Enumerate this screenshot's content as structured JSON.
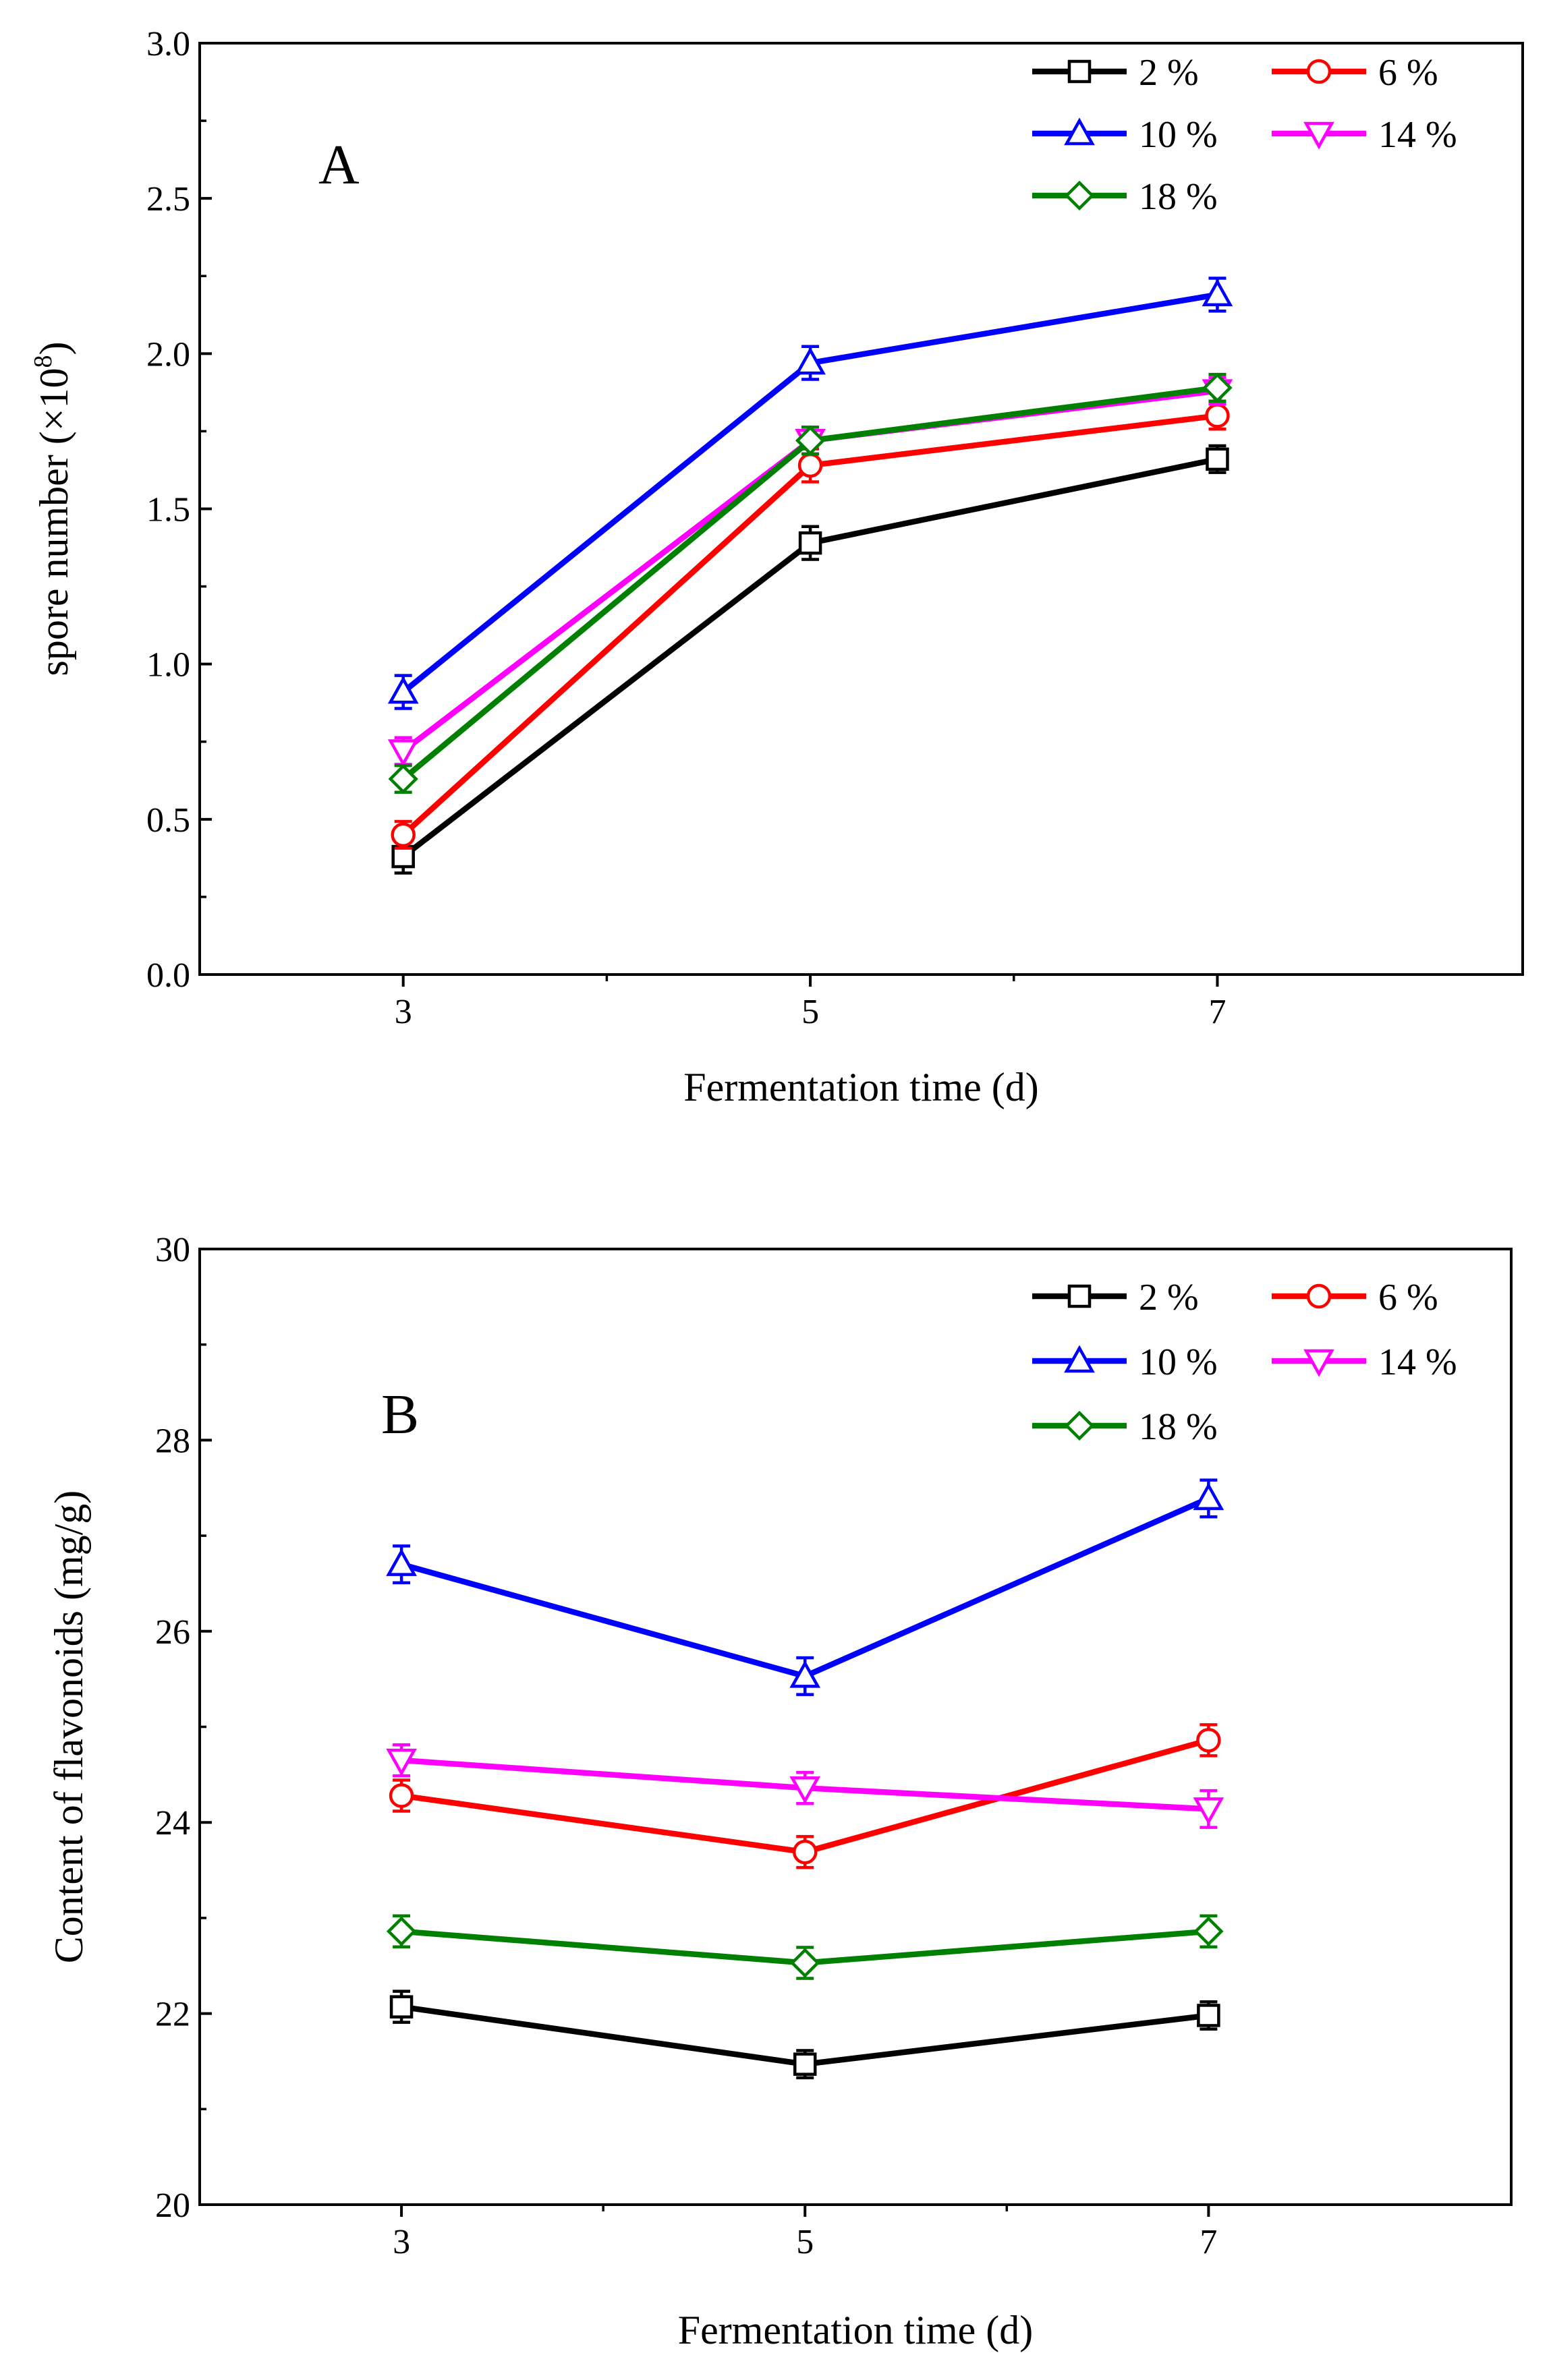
{
  "chart_data": [
    {
      "type": "line",
      "panel_label": "A",
      "title": "",
      "xlabel": "Fermentation time (d)",
      "ylabel_main": "spore number (×10",
      "ylabel_sup": "8",
      "ylabel_close": ")",
      "x": [
        3,
        5,
        7
      ],
      "x_tick_labels": [
        "3",
        "5",
        "7"
      ],
      "xlim": [
        2,
        8.5
      ],
      "ylim": [
        0,
        3.0
      ],
      "y_ticks": [
        0.0,
        0.5,
        1.0,
        1.5,
        2.0,
        2.5,
        3.0
      ],
      "y_tick_labels": [
        "0.0",
        "0.5",
        "1.0",
        "1.5",
        "2.0",
        "2.5",
        "3.0"
      ],
      "grid": false,
      "legend_position": "top-right",
      "series": [
        {
          "name": "2 %",
          "color": "#000000",
          "marker": "square",
          "values": [
            0.38,
            1.39,
            1.66
          ],
          "errors": [
            0.04,
            0.04,
            0.03
          ]
        },
        {
          "name": "6 %",
          "color": "#ff0000",
          "marker": "circle",
          "values": [
            0.45,
            1.64,
            1.8
          ],
          "errors": [
            0.03,
            0.04,
            0.03
          ]
        },
        {
          "name": "10 %",
          "color": "#0000ff",
          "marker": "triangle-up",
          "values": [
            0.91,
            1.97,
            2.19
          ],
          "errors": [
            0.04,
            0.04,
            0.04
          ]
        },
        {
          "name": "14 %",
          "color": "#ff00ff",
          "marker": "triangle-down",
          "values": [
            0.72,
            1.72,
            1.88
          ],
          "errors": [
            0.03,
            0.03,
            0.03
          ]
        },
        {
          "name": "18 %",
          "color": "#008000",
          "marker": "diamond",
          "values": [
            0.63,
            1.72,
            1.89
          ],
          "errors": [
            0.03,
            0.03,
            0.03
          ]
        }
      ]
    },
    {
      "type": "line",
      "panel_label": "B",
      "title": "",
      "xlabel": "Fermentation time (d)",
      "ylabel": "Content of flavonoids (mg/g)",
      "x": [
        3,
        5,
        7
      ],
      "x_tick_labels": [
        "3",
        "5",
        "7"
      ],
      "xlim": [
        2,
        8.5
      ],
      "ylim": [
        20,
        30
      ],
      "y_ticks": [
        20,
        22,
        24,
        26,
        28,
        30
      ],
      "y_tick_labels": [
        "20",
        "22",
        "24",
        "26",
        "28",
        "30"
      ],
      "grid": false,
      "legend_position": "top-right",
      "series": [
        {
          "name": "2 %",
          "color": "#000000",
          "marker": "square",
          "values": [
            22.07,
            21.47,
            21.98
          ],
          "errors": [
            0.12,
            0.1,
            0.1
          ]
        },
        {
          "name": "6 %",
          "color": "#ff0000",
          "marker": "circle",
          "values": [
            24.28,
            23.69,
            24.86
          ],
          "errors": [
            0.12,
            0.12,
            0.12
          ]
        },
        {
          "name": "10 %",
          "color": "#0000ff",
          "marker": "triangle-up",
          "values": [
            26.7,
            25.53,
            27.39
          ],
          "errors": [
            0.15,
            0.15,
            0.15
          ]
        },
        {
          "name": "14 %",
          "color": "#ff00ff",
          "marker": "triangle-down",
          "values": [
            24.65,
            24.36,
            24.14
          ],
          "errors": [
            0.12,
            0.12,
            0.15
          ]
        },
        {
          "name": "18 %",
          "color": "#008000",
          "marker": "diamond",
          "values": [
            22.86,
            22.53,
            22.86
          ],
          "errors": [
            0.12,
            0.12,
            0.12
          ]
        }
      ]
    }
  ]
}
